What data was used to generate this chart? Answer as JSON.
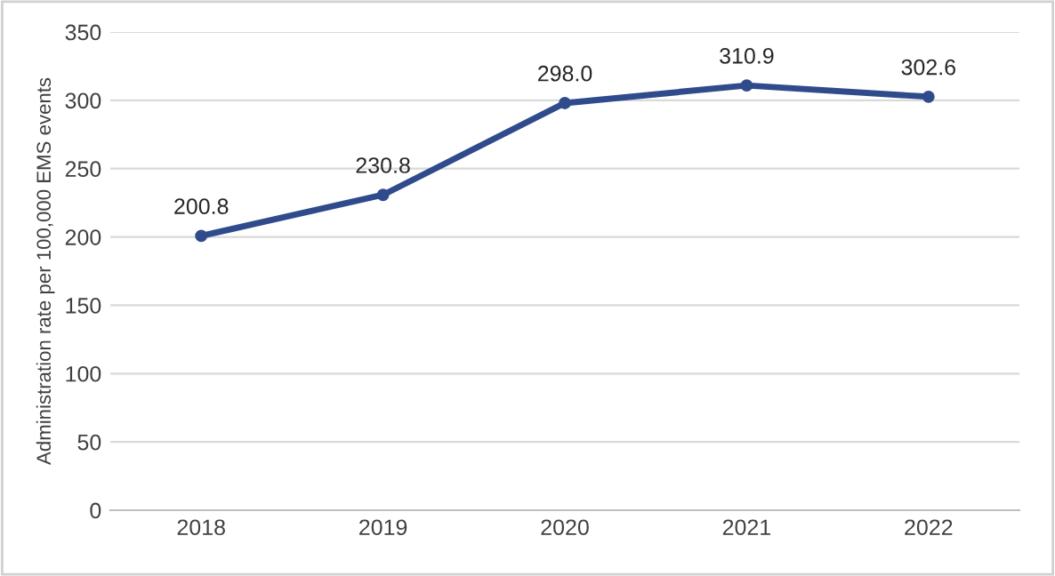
{
  "chart_data": {
    "type": "line",
    "ylabel": "Administration rate per 100,000 EMS events",
    "categories": [
      "2018",
      "2019",
      "2020",
      "2021",
      "2022"
    ],
    "series": [
      {
        "color": "#2f4b8c",
        "values": [
          200.8,
          230.8,
          298.0,
          310.9,
          302.6
        ]
      }
    ],
    "value_labels": [
      "200.8",
      "230.8",
      "298.0",
      "310.9",
      "302.6"
    ],
    "ylim": [
      0,
      350
    ],
    "yticks": [
      0,
      50,
      100,
      150,
      200,
      250,
      300,
      350
    ],
    "grid": "y",
    "marker": "circle",
    "line_style": "solid"
  }
}
